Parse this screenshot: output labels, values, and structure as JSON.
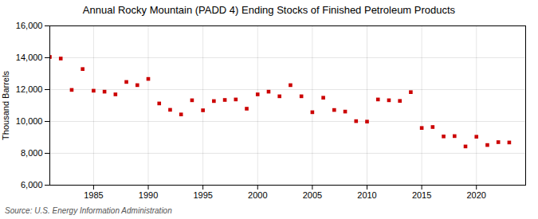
{
  "chart_data": {
    "type": "scatter",
    "title": "Annual Rocky Mountain (PADD 4) Ending Stocks of Finished Petroleum Products",
    "ylabel": "Thousand Barrels",
    "source": "Source: U.S. Energy Information Administration",
    "x": [
      1981,
      1982,
      1983,
      1984,
      1985,
      1986,
      1987,
      1988,
      1989,
      1990,
      1991,
      1992,
      1993,
      1994,
      1995,
      1996,
      1997,
      1998,
      1999,
      2000,
      2001,
      2002,
      2003,
      2004,
      2005,
      2006,
      2007,
      2008,
      2009,
      2010,
      2011,
      2012,
      2013,
      2014,
      2015,
      2016,
      2017,
      2018,
      2019,
      2020,
      2021,
      2022,
      2023
    ],
    "values": [
      14050,
      13950,
      11980,
      13290,
      11930,
      11870,
      11700,
      12480,
      12280,
      12670,
      11130,
      10730,
      10440,
      11330,
      10700,
      11280,
      11350,
      11380,
      10800,
      11700,
      11870,
      11580,
      12280,
      11580,
      10580,
      11490,
      10720,
      10620,
      10020,
      9990,
      11380,
      11330,
      11290,
      11840,
      9590,
      9650,
      9060,
      9080,
      8430,
      9040,
      8520,
      8700,
      8680
    ],
    "color": "#cc0000",
    "marker": "square",
    "xlim": [
      1981.0,
      2024.5
    ],
    "xticks": [
      1985,
      1990,
      1995,
      2000,
      2005,
      2010,
      2015,
      2020
    ],
    "ylim": [
      6000,
      16000
    ],
    "yticks": [
      {
        "value": 6000,
        "label": "6,000"
      },
      {
        "value": 8000,
        "label": "8,000"
      },
      {
        "value": 10000,
        "label": "10,000"
      },
      {
        "value": 12000,
        "label": "12,000"
      },
      {
        "value": 14000,
        "label": "14,000"
      },
      {
        "value": 16000,
        "label": "16,000"
      }
    ],
    "grid": true
  }
}
